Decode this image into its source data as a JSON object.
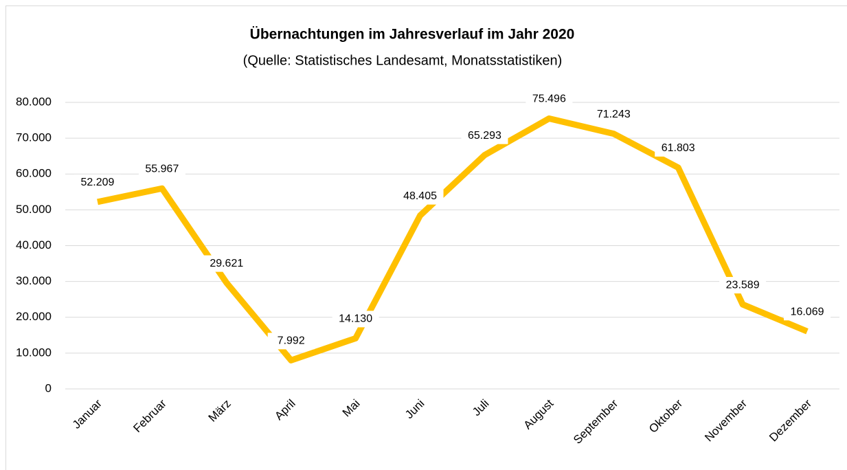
{
  "chart_data": {
    "type": "line",
    "title": "Übernachtungen im Jahresverlauf im Jahr 2020",
    "subtitle": "(Quelle: Statistisches Landesamt, Monatsstatistiken)",
    "categories": [
      "Januar",
      "Februar",
      "März",
      "April",
      "Mai",
      "Juni",
      "Juli",
      "August",
      "September",
      "Oktober",
      "November",
      "Dezember"
    ],
    "series": [
      {
        "name": "Übernachtungen",
        "color": "#ffc000",
        "values": [
          52209,
          55967,
          29621,
          7992,
          14130,
          48405,
          65293,
          75496,
          71243,
          61803,
          23589,
          16069
        ],
        "value_labels": [
          "52.209",
          "55.967",
          "29.621",
          "7.992",
          "14.130",
          "48.405",
          "65.293",
          "75.496",
          "71.243",
          "61.803",
          "23.589",
          "16.069"
        ]
      }
    ],
    "ylim": [
      0,
      80000
    ],
    "yticks": [
      0,
      {
        "value": 10000,
        "label": "10.000"
      },
      {
        "value": 20000,
        "label": "20.000"
      },
      {
        "value": 30000,
        "label": "30.000"
      },
      {
        "value": 40000,
        "label": "40.000"
      },
      {
        "value": 50000,
        "label": "50.000"
      },
      {
        "value": 60000,
        "label": "60.000"
      },
      {
        "value": 70000,
        "label": "70.000"
      },
      {
        "value": 80000,
        "label": "80.000"
      }
    ],
    "grid": true
  }
}
